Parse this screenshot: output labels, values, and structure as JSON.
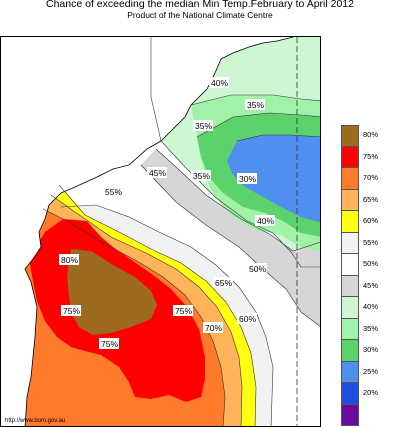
{
  "title": "Chance of exceeding the median Min Temp.February to April 2012",
  "subtitle": "Product of the National Climate Centre",
  "source_url": "http://www.bom.gov.au",
  "legend": [
    {
      "label": "80%",
      "color": "#9e6a20"
    },
    {
      "label": "75%",
      "color": "#ff0000"
    },
    {
      "label": "70%",
      "color": "#ff7a2a"
    },
    {
      "label": "65%",
      "color": "#ffb45a"
    },
    {
      "label": "60%",
      "color": "#ffff10"
    },
    {
      "label": "55%",
      "color": "#f2f2f2"
    },
    {
      "label": "50%",
      "color": "#ffffff"
    },
    {
      "label": "45%",
      "color": "#d6d6d6"
    },
    {
      "label": "40%",
      "color": "#cdf7d2"
    },
    {
      "label": "35%",
      "color": "#a0f2a8"
    },
    {
      "label": "30%",
      "color": "#5cd26c"
    },
    {
      "label": "25%",
      "color": "#4f8ff0"
    },
    {
      "label": "20%",
      "color": "#1f4de0"
    },
    {
      "label": "",
      "color": "#6a0aa0"
    }
  ],
  "contour_labels": [
    "40%",
    "35%",
    "35%",
    "45%",
    "35%",
    "30%",
    "55%",
    "40%",
    "80%",
    "50%",
    "65%",
    "75%",
    "75%",
    "60%",
    "70%",
    "75%"
  ]
}
